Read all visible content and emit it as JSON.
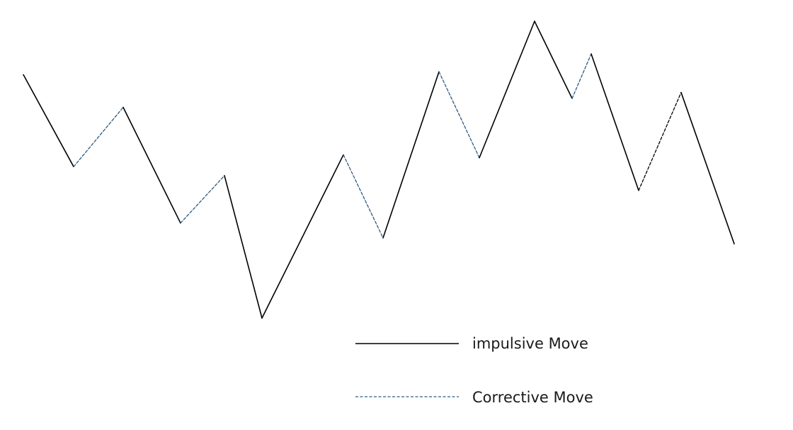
{
  "diagram": {
    "colors": {
      "background": "#ffffff",
      "impulsive": "#000000",
      "corrective": "#2f5a82",
      "corrective_last": "#000000"
    },
    "path_points": [
      [
        0,
        0.82
      ],
      [
        1,
        0.51
      ],
      [
        2,
        0.71
      ],
      [
        3,
        0.32
      ],
      [
        4,
        0.48
      ],
      [
        5,
        0.0
      ],
      [
        6,
        0.55
      ],
      [
        7,
        0.27
      ],
      [
        8,
        0.83
      ],
      [
        9,
        0.54
      ],
      [
        10,
        1.0
      ],
      [
        11,
        0.74
      ],
      [
        12,
        0.89
      ],
      [
        13,
        0.43
      ],
      [
        14,
        0.76
      ],
      [
        15,
        0.25
      ]
    ],
    "segments": [
      {
        "type": "impulsive"
      },
      {
        "type": "corrective"
      },
      {
        "type": "impulsive"
      },
      {
        "type": "corrective"
      },
      {
        "type": "impulsive"
      },
      {
        "type": "impulsive"
      },
      {
        "type": "corrective"
      },
      {
        "type": "impulsive"
      },
      {
        "type": "corrective"
      },
      {
        "type": "impulsive"
      },
      {
        "type": "impulsive"
      },
      {
        "type": "corrective"
      },
      {
        "type": "impulsive"
      },
      {
        "type": "corrective_dark"
      },
      {
        "type": "impulsive"
      }
    ]
  },
  "legend": {
    "items": [
      {
        "label": "impulsive Move",
        "style": "impulsive"
      },
      {
        "label": "Corrective Move",
        "style": "corrective"
      }
    ]
  }
}
